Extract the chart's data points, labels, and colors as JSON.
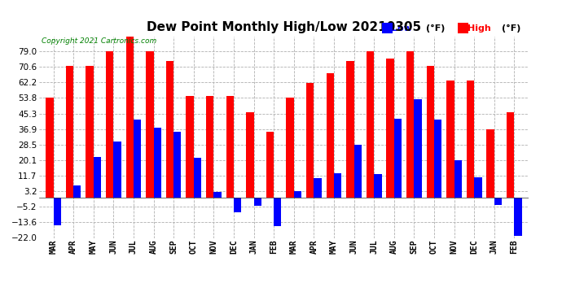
{
  "title": "Dew Point Monthly High/Low 20210305",
  "copyright": "Copyright 2021 Cartronics.com",
  "legend_low": "Low",
  "legend_high": "High",
  "legend_unit": "(°F)",
  "months": [
    "MAR",
    "APR",
    "MAY",
    "JUN",
    "JUL",
    "AUG",
    "SEP",
    "OCT",
    "NOV",
    "DEC",
    "JAN",
    "FEB",
    "MAR",
    "APR",
    "MAY",
    "JUN",
    "JUL",
    "AUG",
    "SEP",
    "OCT",
    "NOV",
    "DEC",
    "JAN",
    "FEB"
  ],
  "high": [
    53.8,
    71.0,
    71.0,
    79.0,
    87.0,
    79.0,
    74.0,
    55.0,
    55.0,
    55.0,
    46.0,
    35.5,
    53.8,
    62.0,
    67.0,
    74.0,
    79.0,
    75.0,
    79.0,
    71.0,
    63.0,
    63.0,
    37.0,
    46.0
  ],
  "low": [
    -15.0,
    6.5,
    22.0,
    30.0,
    42.0,
    37.5,
    35.5,
    21.5,
    3.0,
    -8.0,
    -4.5,
    -15.5,
    3.5,
    10.5,
    13.0,
    28.5,
    12.5,
    42.5,
    53.0,
    42.0,
    20.0,
    11.0,
    -4.0,
    -21.0
  ],
  "ylim": [
    -22.0,
    87.0
  ],
  "yticks": [
    79.0,
    70.6,
    62.2,
    53.8,
    45.3,
    36.9,
    28.5,
    20.1,
    11.7,
    3.2,
    -5.2,
    -13.6,
    -22.0
  ],
  "high_color": "#ff0000",
  "low_color": "#0000ff",
  "grid_color": "#b0b0b0",
  "bg_color": "#ffffff",
  "title_fontsize": 11,
  "label_fontsize": 7,
  "tick_fontsize": 7.5,
  "copyright_color": "#008000"
}
